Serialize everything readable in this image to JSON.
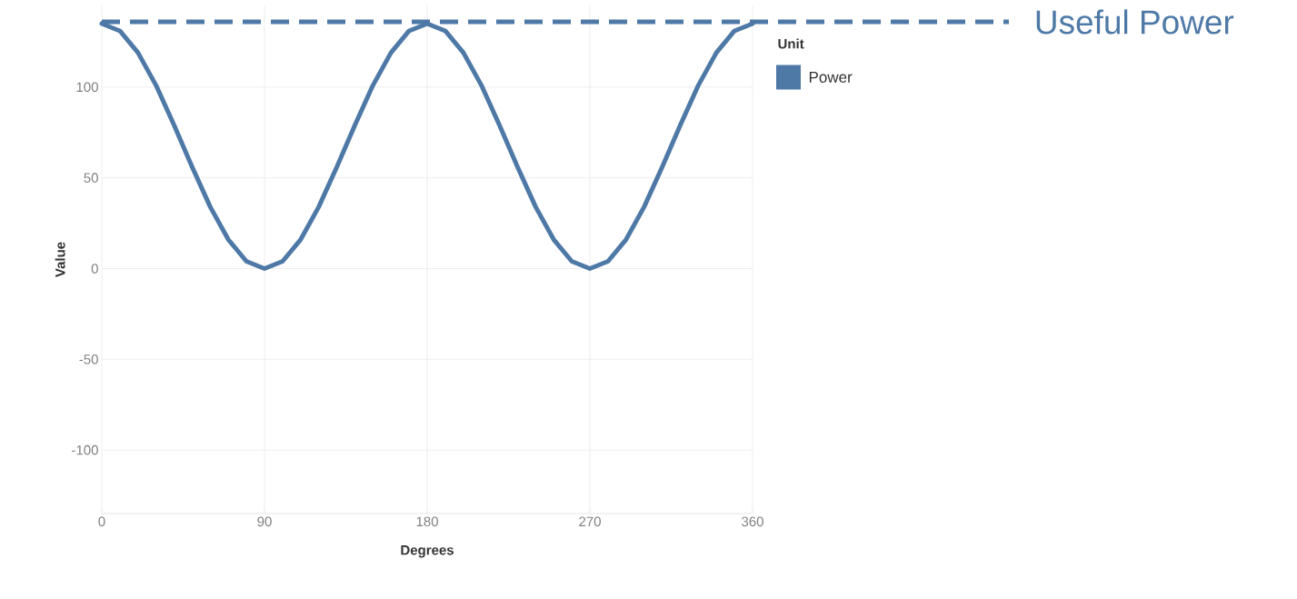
{
  "chart_data": {
    "type": "line",
    "xlabel": "Degrees",
    "ylabel": "Value",
    "legend_title": "Unit",
    "x": [
      0,
      10,
      20,
      30,
      40,
      50,
      60,
      70,
      80,
      90,
      100,
      110,
      120,
      130,
      140,
      150,
      160,
      170,
      180,
      190,
      200,
      210,
      220,
      230,
      240,
      250,
      260,
      270,
      280,
      290,
      300,
      310,
      320,
      330,
      340,
      350,
      360
    ],
    "series": [
      {
        "name": "Power",
        "color": "#4e79a7",
        "values": [
          135,
          131,
          119,
          101,
          79,
          56,
          34,
          16,
          4,
          0,
          4,
          16,
          34,
          56,
          79,
          101,
          119,
          131,
          135,
          131,
          119,
          101,
          79,
          56,
          34,
          16,
          4,
          0,
          4,
          16,
          34,
          56,
          79,
          101,
          119,
          131,
          135
        ]
      }
    ],
    "xlim": [
      0,
      360
    ],
    "xticks": [
      0,
      90,
      180,
      270,
      360
    ],
    "ylim": [
      -135,
      145
    ],
    "yticks": [
      -100,
      -50,
      0,
      50,
      100
    ],
    "ref_lines": [
      {
        "axis": "y",
        "value": 136,
        "label": "Useful Power",
        "color": "#4e79a7",
        "line_style": "dashed"
      }
    ],
    "grid": true,
    "legend": "top right",
    "marker": "none",
    "line_style": "solid"
  }
}
